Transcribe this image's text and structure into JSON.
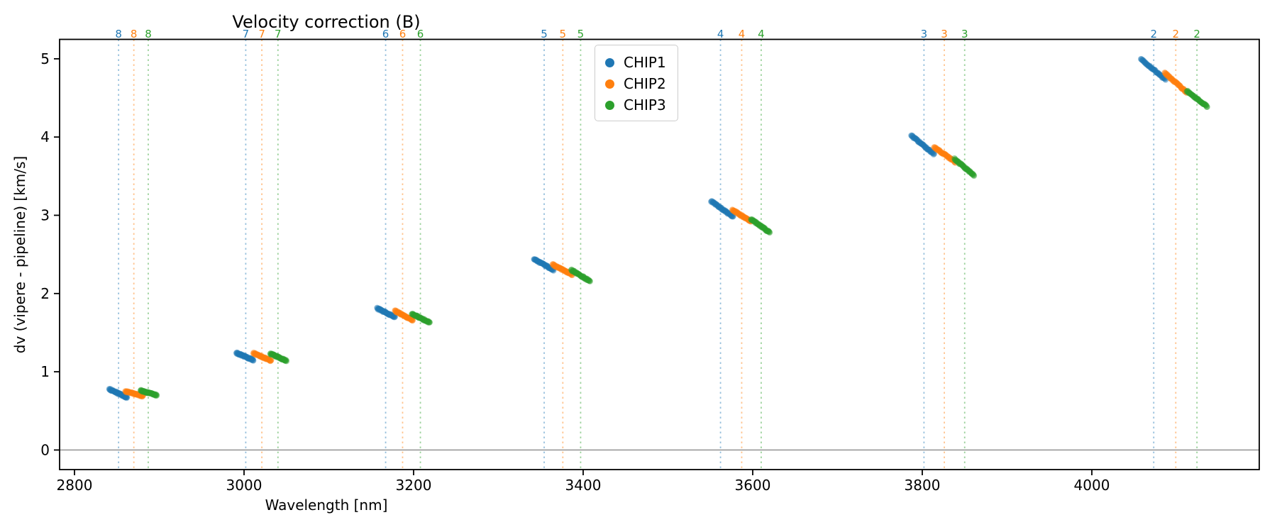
{
  "chart_data": {
    "type": "scatter",
    "title": "Velocity correction (B)",
    "xlabel": "Wavelength [nm]",
    "ylabel": "dv (vipere - pipeline) [km/s]",
    "xlim": [
      2782,
      4198
    ],
    "ylim": [
      -0.25,
      5.25
    ],
    "xticks": [
      2800,
      3000,
      3200,
      3400,
      3600,
      3800,
      4000
    ],
    "yticks": [
      0,
      1,
      2,
      3,
      4,
      5
    ],
    "grid": false,
    "hline": {
      "y": 0,
      "color": "#808080"
    },
    "legend": {
      "position": "upper center-left",
      "entries": [
        "CHIP1",
        "CHIP2",
        "CHIP3"
      ]
    },
    "series_colors": {
      "CHIP1": "#1f77b4",
      "CHIP2": "#ff7f0e",
      "CHIP3": "#2ca02c"
    },
    "top_axis_note": "colored dotted vertical line + order number label per chip",
    "orders": [
      {
        "order": 8,
        "segments": [
          {
            "chip": "CHIP1",
            "line_wl": 2852,
            "wl_range": [
              2841,
              2862
            ],
            "dv_range": [
              0.78,
              0.67
            ]
          },
          {
            "chip": "CHIP2",
            "line_wl": 2870,
            "wl_range": [
              2860,
              2881
            ],
            "dv_range": [
              0.75,
              0.69
            ]
          },
          {
            "chip": "CHIP3",
            "line_wl": 2887,
            "wl_range": [
              2878,
              2897
            ],
            "dv_range": [
              0.76,
              0.7
            ]
          }
        ]
      },
      {
        "order": 7,
        "segments": [
          {
            "chip": "CHIP1",
            "line_wl": 3002,
            "wl_range": [
              2991,
              3011
            ],
            "dv_range": [
              1.24,
              1.15
            ]
          },
          {
            "chip": "CHIP2",
            "line_wl": 3021,
            "wl_range": [
              3011,
              3032
            ],
            "dv_range": [
              1.24,
              1.14
            ]
          },
          {
            "chip": "CHIP3",
            "line_wl": 3040,
            "wl_range": [
              3031,
              3050
            ],
            "dv_range": [
              1.23,
              1.14
            ]
          }
        ]
      },
      {
        "order": 6,
        "segments": [
          {
            "chip": "CHIP1",
            "line_wl": 3167,
            "wl_range": [
              3157,
              3178
            ],
            "dv_range": [
              1.81,
              1.7
            ]
          },
          {
            "chip": "CHIP2",
            "line_wl": 3187,
            "wl_range": [
              3178,
              3199
            ],
            "dv_range": [
              1.78,
              1.66
            ]
          },
          {
            "chip": "CHIP3",
            "line_wl": 3208,
            "wl_range": [
              3198,
              3219
            ],
            "dv_range": [
              1.74,
              1.63
            ]
          }
        ]
      },
      {
        "order": 5,
        "segments": [
          {
            "chip": "CHIP1",
            "line_wl": 3354,
            "wl_range": [
              3342,
              3365
            ],
            "dv_range": [
              2.44,
              2.3
            ]
          },
          {
            "chip": "CHIP2",
            "line_wl": 3376,
            "wl_range": [
              3364,
              3387
            ],
            "dv_range": [
              2.37,
              2.24
            ]
          },
          {
            "chip": "CHIP3",
            "line_wl": 3397,
            "wl_range": [
              3386,
              3408
            ],
            "dv_range": [
              2.3,
              2.16
            ]
          }
        ]
      },
      {
        "order": 4,
        "segments": [
          {
            "chip": "CHIP1",
            "line_wl": 3562,
            "wl_range": [
              3551,
              3577
            ],
            "dv_range": [
              3.18,
              2.98
            ]
          },
          {
            "chip": "CHIP2",
            "line_wl": 3587,
            "wl_range": [
              3576,
              3598
            ],
            "dv_range": [
              3.07,
              2.92
            ]
          },
          {
            "chip": "CHIP3",
            "line_wl": 3610,
            "wl_range": [
              3598,
              3620
            ],
            "dv_range": [
              2.95,
              2.78
            ]
          }
        ]
      },
      {
        "order": 3,
        "segments": [
          {
            "chip": "CHIP1",
            "line_wl": 3802,
            "wl_range": [
              3787,
              3814
            ],
            "dv_range": [
              4.02,
              3.78
            ]
          },
          {
            "chip": "CHIP2",
            "line_wl": 3826,
            "wl_range": [
              3814,
              3839
            ],
            "dv_range": [
              3.87,
              3.68
            ]
          },
          {
            "chip": "CHIP3",
            "line_wl": 3850,
            "wl_range": [
              3838,
              3861
            ],
            "dv_range": [
              3.72,
              3.51
            ]
          }
        ]
      },
      {
        "order": 2,
        "segments": [
          {
            "chip": "CHIP1",
            "line_wl": 4073,
            "wl_range": [
              4058,
              4087
            ],
            "dv_range": [
              5.0,
              4.73
            ]
          },
          {
            "chip": "CHIP2",
            "line_wl": 4099,
            "wl_range": [
              4086,
              4112
            ],
            "dv_range": [
              4.82,
              4.57
            ]
          },
          {
            "chip": "CHIP3",
            "line_wl": 4124,
            "wl_range": [
              4112,
              4136
            ],
            "dv_range": [
              4.59,
              4.39
            ]
          }
        ]
      }
    ]
  }
}
